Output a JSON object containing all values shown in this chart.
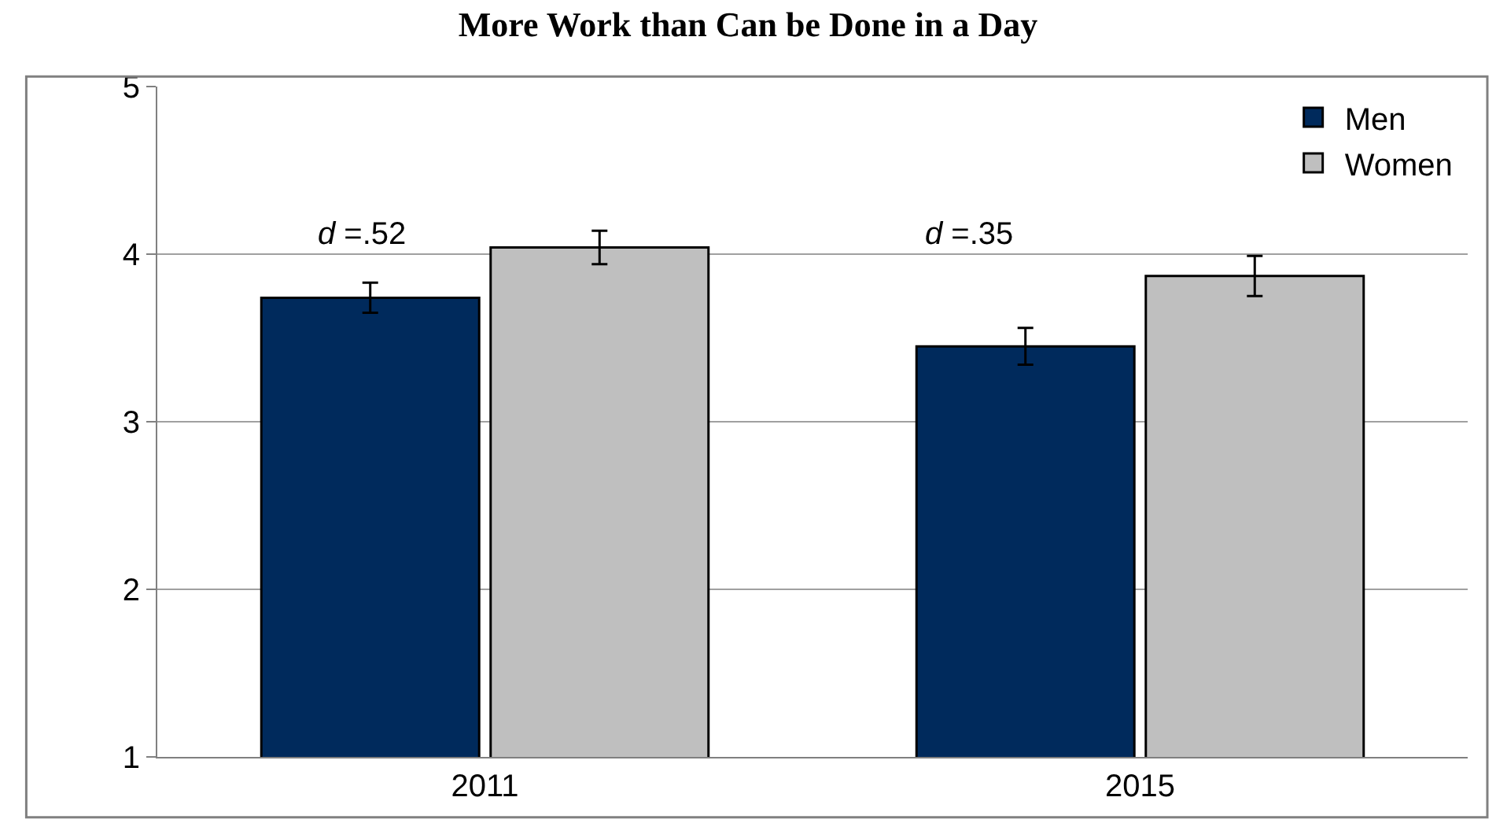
{
  "chart_data": {
    "type": "bar",
    "title": "More Work than Can be Done in a Day",
    "categories": [
      "2011",
      "2015"
    ],
    "series": [
      {
        "name": "Men",
        "color": "#002a5c",
        "values": [
          3.74,
          3.45
        ],
        "errors": [
          0.09,
          0.11
        ]
      },
      {
        "name": "Women",
        "color": "#bfbfbf",
        "values": [
          4.04,
          3.87
        ],
        "errors": [
          0.1,
          0.12
        ]
      }
    ],
    "ylim": [
      1,
      5
    ],
    "yticks": [
      1,
      2,
      3,
      4,
      5
    ],
    "grid": "y",
    "legend": "top right",
    "annotations": [
      "d =.52",
      "d =.35"
    ]
  }
}
